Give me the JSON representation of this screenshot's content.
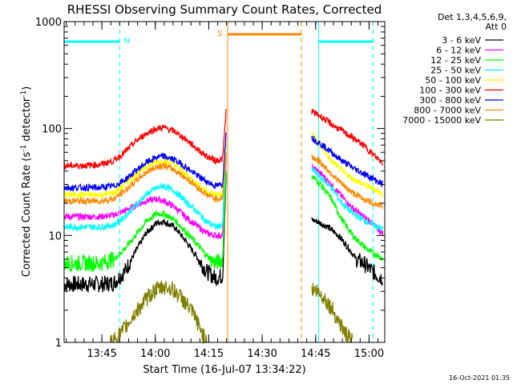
{
  "chart_data": {
    "type": "line",
    "title": "RHESSI Observing Summary Count Rates, Corrected",
    "xlabel": "Start Time (16-Jul-07 13:34:22)",
    "ylabel": "Corrected Count Rate (s⁻¹ detector⁻¹)",
    "ylabel_parts": {
      "main": "Corrected Count Rate (s",
      "sup1": "-1",
      "mid": " detector",
      "sup2": "-1",
      "end": ")"
    },
    "x_unit": "minutes since 13:34:22",
    "xlim": [
      0,
      90
    ],
    "ylim": [
      1,
      1000
    ],
    "log_y": true,
    "x_ticks": [
      {
        "pos": 10.6,
        "label": "13:45"
      },
      {
        "pos": 25.6,
        "label": "14:00"
      },
      {
        "pos": 40.6,
        "label": "14:15"
      },
      {
        "pos": 55.6,
        "label": "14:30"
      },
      {
        "pos": 70.6,
        "label": "14:45"
      },
      {
        "pos": 85.6,
        "label": "15:00"
      }
    ],
    "y_ticks": [
      {
        "pos": 1,
        "label": "1"
      },
      {
        "pos": 10,
        "label": "10"
      },
      {
        "pos": 100,
        "label": "100"
      },
      {
        "pos": 1000,
        "label": "1000"
      }
    ],
    "legend": {
      "header": [
        "Det 1,3,4,5,6,9,",
        "Att 0"
      ],
      "position": "right"
    },
    "series": [
      {
        "name": "3 - 6 keV",
        "color": "#000000",
        "segments": [
          {
            "x": [
              0,
              5,
              10,
              14,
              17,
              20,
              23,
              26,
              28,
              31,
              34,
              37,
              40,
              42.5,
              44.5,
              45.5
            ],
            "y": [
              3.5,
              3.5,
              3.5,
              3.6,
              4.6,
              7,
              10.5,
              13.2,
              13.5,
              12,
              9,
              6.5,
              4.6,
              4,
              4.2,
              40
            ]
          },
          {
            "x": [
              69.5,
              71,
              74,
              77,
              80,
              82,
              84,
              86,
              88,
              89.5
            ],
            "y": [
              14,
              13.5,
              12,
              10,
              7.5,
              6,
              5.5,
              4.8,
              4.2,
              4
            ]
          }
        ]
      },
      {
        "name": "6 - 12 keV",
        "color": "#ff00ff",
        "segments": [
          {
            "x": [
              0,
              5,
              10,
              14,
              17,
              20,
              23,
              26,
              28,
              31,
              34,
              37,
              40,
              42.5,
              44.5,
              45.5
            ],
            "y": [
              15,
              15,
              15,
              15.5,
              17,
              19,
              21,
              22,
              21,
              18.5,
              15,
              12.5,
              10.5,
              10,
              10,
              60
            ]
          },
          {
            "x": [
              69.5,
              72,
              75,
              78,
              81,
              84,
              86,
              88,
              89.5
            ],
            "y": [
              44,
              38,
              30,
              23,
              18,
              15,
              13.5,
              11.5,
              10.5
            ]
          }
        ]
      },
      {
        "name": "12 - 25 keV",
        "color": "#00ff00",
        "segments": [
          {
            "x": [
              0,
              5,
              10,
              14,
              17,
              20,
              23,
              26,
              28,
              31,
              34,
              37,
              40,
              42.5,
              44.5,
              45.5
            ],
            "y": [
              5.5,
              5.5,
              5.5,
              6,
              7.5,
              10,
              13.5,
              16,
              16,
              14,
              11,
              8.5,
              6.5,
              5.5,
              6,
              45
            ]
          },
          {
            "x": [
              69.5,
              72,
              75,
              78,
              81,
              84,
              86,
              88,
              89.5
            ],
            "y": [
              36,
              30,
              22,
              14,
              10,
              8,
              7,
              6.5,
              6
            ]
          }
        ]
      },
      {
        "name": "25 - 50 keV",
        "color": "#00ffff",
        "segments": [
          {
            "x": [
              0,
              5,
              10,
              14,
              17,
              20,
              23,
              26,
              28,
              31,
              34,
              37,
              40,
              42.5,
              44.5,
              45.5
            ],
            "y": [
              12,
              12,
              12,
              12.5,
              15,
              19,
              24,
              28,
              29,
              26,
              21,
              17,
              13.5,
              12,
              12.5,
              70
            ]
          },
          {
            "x": [
              69.5,
              72,
              75,
              78,
              81,
              84,
              86,
              88,
              89.5
            ],
            "y": [
              42,
              35,
              28,
              20,
              16,
              14,
              13,
              12,
              11.5
            ]
          }
        ]
      },
      {
        "name": "50 - 100 keV",
        "color": "#ffff00",
        "segments": [
          {
            "x": [
              0,
              5,
              10,
              14,
              17,
              20,
              23,
              26,
              28,
              31,
              34,
              37,
              40,
              42.5,
              44.5,
              45.5
            ],
            "y": [
              24,
              24,
              24,
              25,
              30,
              37,
              44,
              49,
              50,
              46,
              38,
              31,
              26,
              24,
              24.5,
              80
            ]
          },
          {
            "x": [
              69.5,
              72,
              75,
              78,
              81,
              84,
              86,
              88,
              89.5
            ],
            "y": [
              90,
              68,
              50,
              40,
              34,
              30,
              28,
              26,
              24
            ]
          }
        ]
      },
      {
        "name": "100 - 300 keV",
        "color": "#ff0000",
        "segments": [
          {
            "x": [
              0,
              5,
              10,
              14,
              17,
              20,
              23,
              26,
              28,
              31,
              34,
              37,
              40,
              42.5,
              44.5,
              45.5
            ],
            "y": [
              45,
              45,
              46,
              50,
              60,
              75,
              90,
              100,
              102,
              94,
              80,
              66,
              55,
              50,
              52,
              150
            ]
          },
          {
            "x": [
              69.5,
              72,
              75,
              78,
              81,
              84,
              86,
              88,
              89.5
            ],
            "y": [
              145,
              130,
              110,
              95,
              82,
              70,
              60,
              52,
              48
            ]
          }
        ]
      },
      {
        "name": "300 - 800 keV",
        "color": "#0000ff",
        "segments": [
          {
            "x": [
              0,
              5,
              10,
              14,
              17,
              20,
              23,
              26,
              28,
              31,
              34,
              37,
              40,
              42.5,
              44.5,
              45.5
            ],
            "y": [
              28,
              28,
              28,
              29,
              33,
              40,
              48,
              54,
              55,
              51,
              44,
              37,
              32,
              29,
              30,
              100
            ]
          },
          {
            "x": [
              69.5,
              72,
              75,
              78,
              81,
              84,
              86,
              88,
              89.5
            ],
            "y": [
              82,
              72,
              60,
              50,
              43,
              38,
              35,
              32,
              30
            ]
          }
        ]
      },
      {
        "name": "800 - 7000 keV",
        "color": "#ff8800",
        "segments": [
          {
            "x": [
              0,
              5,
              10,
              14,
              17,
              20,
              23,
              26,
              28,
              31,
              34,
              37,
              40,
              42.5,
              44.5,
              45.5
            ],
            "y": [
              21,
              21,
              21,
              22,
              26,
              32,
              39,
              44,
              45,
              41,
              35,
              29,
              24,
              22,
              22.5,
              60
            ]
          },
          {
            "x": [
              69.5,
              72,
              75,
              78,
              81,
              84,
              86,
              88,
              89.5
            ],
            "y": [
              55,
              48,
              38,
              30,
              25,
              22,
              20.5,
              19.5,
              19
            ]
          }
        ]
      },
      {
        "name": "7000 - 15000 keV",
        "color": "#808000",
        "segments": [
          {
            "x": [
              13,
              16,
              19,
              22,
              25,
              28,
              30,
              33,
              36,
              38,
              40
            ],
            "y": [
              1,
              1.2,
              1.7,
              2.3,
              3,
              3.3,
              3.2,
              2.6,
              1.9,
              1.4,
              1
            ]
          },
          {
            "x": [
              69.5,
              71,
              73,
              75,
              77,
              79,
              81
            ],
            "y": [
              3.2,
              3,
              2.6,
              2.1,
              1.6,
              1.2,
              1
            ]
          }
        ]
      }
    ],
    "annotations": [
      {
        "label": "N",
        "color": "#00ffff",
        "x_start": 0,
        "x_end": 15.6,
        "y": 650
      },
      {
        "label": "S",
        "color": "#ff8800",
        "x_start": 45.9,
        "x_end": 66.6,
        "y": 760
      },
      {
        "label": "",
        "color": "#00ffff",
        "x_start": 71.4,
        "x_end": 86.7,
        "y": 650
      }
    ],
    "marker_lines": [
      {
        "x": 0,
        "color": "#00ffff",
        "style": "solid"
      },
      {
        "x": 15.6,
        "color": "#00ffff",
        "style": "dashed"
      },
      {
        "x": 45.9,
        "color": "#ff8800",
        "style": "solid"
      },
      {
        "x": 66.6,
        "color": "#ff8800",
        "style": "dashed"
      },
      {
        "x": 71.4,
        "color": "#00ffff",
        "style": "solid"
      },
      {
        "x": 86.7,
        "color": "#00ffff",
        "style": "dashed"
      }
    ],
    "grid": false
  },
  "footer_timestamp": "16-Oct-2021 01:35"
}
